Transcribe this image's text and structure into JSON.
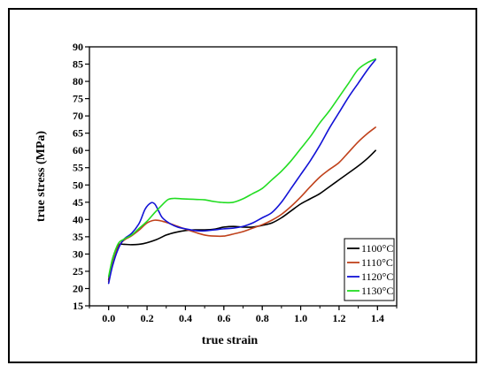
{
  "chart_data": {
    "type": "line",
    "title": "",
    "xlabel": "true strain",
    "ylabel": "true stress (MPa)",
    "xlim": [
      -0.1,
      1.5
    ],
    "ylim": [
      15,
      90
    ],
    "x_ticks": [
      "0.0",
      "0.2",
      "0.4",
      "0.6",
      "0.8",
      "1.0",
      "1.2",
      "1.4"
    ],
    "y_ticks": [
      "15",
      "20",
      "25",
      "30",
      "35",
      "40",
      "45",
      "50",
      "55",
      "60",
      "65",
      "70",
      "75",
      "80",
      "85",
      "90"
    ],
    "grid": false,
    "legend_position": "bottom-right",
    "series": [
      {
        "name": "1100°C",
        "color": "#000000",
        "x": [
          0.0,
          0.02,
          0.05,
          0.08,
          0.12,
          0.18,
          0.25,
          0.3,
          0.35,
          0.4,
          0.45,
          0.5,
          0.55,
          0.6,
          0.65,
          0.7,
          0.75,
          0.8,
          0.85,
          0.9,
          0.95,
          1.0,
          1.05,
          1.1,
          1.15,
          1.2,
          1.25,
          1.3,
          1.35,
          1.39
        ],
        "y": [
          22.5,
          28.5,
          32.5,
          32.8,
          32.7,
          33.0,
          34.2,
          35.5,
          36.3,
          36.8,
          37.0,
          37.0,
          37.2,
          37.8,
          38.0,
          37.8,
          37.8,
          38.3,
          39.0,
          40.5,
          42.5,
          44.5,
          46.0,
          47.5,
          49.5,
          51.5,
          53.5,
          55.5,
          57.8,
          60.0
        ]
      },
      {
        "name": "1110°C",
        "color": "#c0421c",
        "x": [
          0.0,
          0.02,
          0.05,
          0.08,
          0.12,
          0.16,
          0.2,
          0.24,
          0.28,
          0.32,
          0.36,
          0.4,
          0.45,
          0.5,
          0.55,
          0.6,
          0.65,
          0.7,
          0.75,
          0.8,
          0.85,
          0.9,
          0.95,
          1.0,
          1.05,
          1.1,
          1.15,
          1.2,
          1.25,
          1.3,
          1.35,
          1.39
        ],
        "y": [
          22.0,
          27.0,
          32.0,
          34.0,
          35.3,
          37.0,
          39.0,
          39.8,
          39.5,
          38.8,
          38.0,
          37.2,
          36.3,
          35.5,
          35.2,
          35.2,
          35.8,
          36.5,
          37.5,
          38.5,
          39.8,
          41.5,
          43.8,
          46.5,
          49.5,
          52.3,
          54.5,
          56.5,
          59.5,
          62.5,
          65.0,
          66.7
        ]
      },
      {
        "name": "1120°C",
        "color": "#1212d6",
        "x": [
          0.0,
          0.02,
          0.05,
          0.08,
          0.12,
          0.16,
          0.19,
          0.22,
          0.24,
          0.26,
          0.28,
          0.32,
          0.36,
          0.4,
          0.45,
          0.5,
          0.55,
          0.6,
          0.65,
          0.7,
          0.75,
          0.8,
          0.85,
          0.9,
          0.95,
          1.0,
          1.05,
          1.1,
          1.15,
          1.2,
          1.25,
          1.3,
          1.35,
          1.39
        ],
        "y": [
          21.5,
          26.5,
          31.5,
          34.3,
          36.0,
          39.0,
          43.0,
          44.8,
          44.5,
          42.5,
          40.5,
          38.8,
          37.8,
          37.3,
          36.8,
          36.7,
          37.0,
          37.3,
          37.5,
          38.0,
          39.0,
          40.5,
          42.0,
          45.0,
          49.0,
          53.0,
          57.0,
          61.5,
          66.5,
          71.0,
          75.5,
          79.5,
          83.5,
          86.3
        ]
      },
      {
        "name": "1130°C",
        "color": "#22dd22",
        "x": [
          0.0,
          0.02,
          0.05,
          0.08,
          0.12,
          0.16,
          0.2,
          0.24,
          0.28,
          0.31,
          0.34,
          0.38,
          0.42,
          0.46,
          0.5,
          0.55,
          0.6,
          0.65,
          0.7,
          0.75,
          0.8,
          0.85,
          0.9,
          0.95,
          1.0,
          1.05,
          1.1,
          1.15,
          1.2,
          1.25,
          1.3,
          1.35,
          1.39
        ],
        "y": [
          23.5,
          28.5,
          33.0,
          34.3,
          35.5,
          37.5,
          39.5,
          42.0,
          44.3,
          45.8,
          46.1,
          46.0,
          45.9,
          45.8,
          45.7,
          45.2,
          44.9,
          45.0,
          46.0,
          47.5,
          49.0,
          51.5,
          54.0,
          57.0,
          60.5,
          64.0,
          68.0,
          71.5,
          75.5,
          79.5,
          83.5,
          85.5,
          86.5
        ]
      }
    ]
  }
}
